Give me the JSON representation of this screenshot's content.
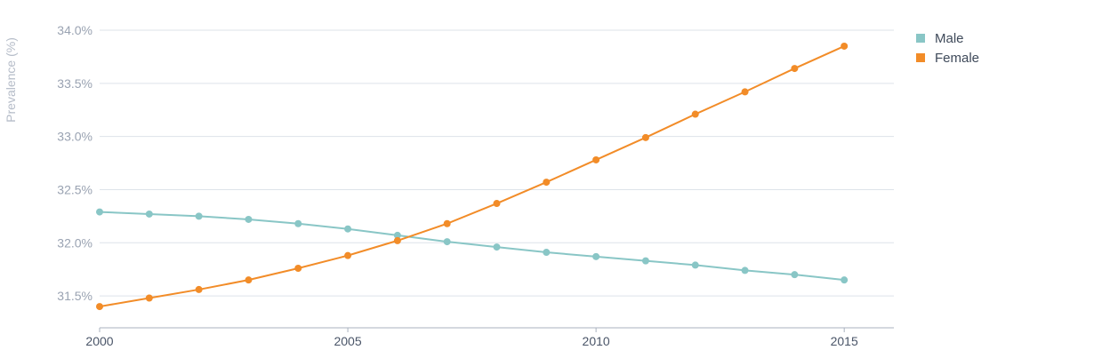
{
  "chart_data": {
    "type": "line",
    "ylabel": "Prevalence (%)",
    "xlabel": "",
    "x": [
      2000,
      2001,
      2002,
      2003,
      2004,
      2005,
      2006,
      2007,
      2008,
      2009,
      2010,
      2011,
      2012,
      2013,
      2014,
      2015
    ],
    "xlim": [
      2000,
      2016
    ],
    "x_ticks": [
      2000,
      2005,
      2010,
      2015
    ],
    "x_tick_labels": [
      "2000",
      "2005",
      "2010",
      "2015"
    ],
    "ylim": [
      31.2,
      34.0
    ],
    "y_ticks": [
      31.5,
      32.0,
      32.5,
      33.0,
      33.5,
      34.0
    ],
    "y_tick_labels": [
      "31.5%",
      "32.0%",
      "32.5%",
      "33.0%",
      "33.5%",
      "34.0%"
    ],
    "grid": true,
    "legend_position": "top-right",
    "series": [
      {
        "name": "Male",
        "color": "#89c6c6",
        "values": [
          32.29,
          32.27,
          32.25,
          32.22,
          32.18,
          32.13,
          32.07,
          32.01,
          31.96,
          31.91,
          31.87,
          31.83,
          31.79,
          31.74,
          31.7,
          31.65
        ]
      },
      {
        "name": "Female",
        "color": "#f28c28",
        "values": [
          31.4,
          31.48,
          31.56,
          31.65,
          31.76,
          31.88,
          32.02,
          32.18,
          32.37,
          32.57,
          32.78,
          32.99,
          33.21,
          33.42,
          33.64,
          33.85
        ]
      }
    ]
  }
}
